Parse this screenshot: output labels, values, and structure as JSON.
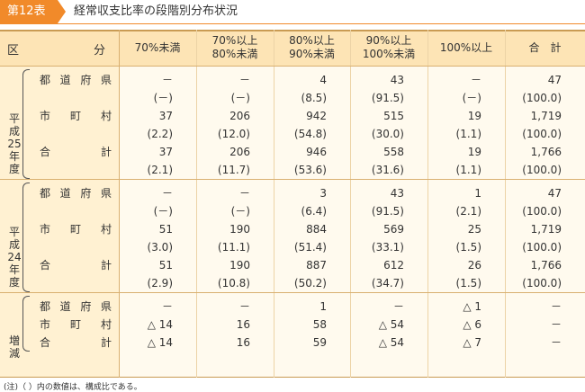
{
  "title": {
    "badge": "第12表",
    "text": "経常収支比率の段階別分布状況"
  },
  "header": {
    "kubun_left": "区",
    "kubun_right": "分",
    "cols": [
      [
        "70%未満"
      ],
      [
        "70%以上",
        "80%未満"
      ],
      [
        "80%以上",
        "90%未満"
      ],
      [
        "90%以上",
        "100%未満"
      ],
      [
        "100%以上"
      ],
      [
        "合　計"
      ]
    ]
  },
  "rows": {
    "prefecture": [
      "都",
      "道",
      "府",
      "県"
    ],
    "municipal": [
      "市",
      "町",
      "村"
    ],
    "total": [
      "合",
      "計"
    ]
  },
  "groups": [
    {
      "label": "平成25年度",
      "rows": [
        {
          "type": "prefecture",
          "values": [
            "－",
            "－",
            "4",
            "43",
            "－",
            "47"
          ]
        },
        {
          "type": "ratio",
          "values": [
            "(－)",
            "(－)",
            "(8.5)",
            "(91.5)",
            "(－)",
            "(100.0)"
          ]
        },
        {
          "type": "municipal",
          "values": [
            "37",
            "206",
            "942",
            "515",
            "19",
            "1,719"
          ]
        },
        {
          "type": "ratio",
          "values": [
            "(2.2)",
            "(12.0)",
            "(54.8)",
            "(30.0)",
            "(1.1)",
            "(100.0)"
          ]
        },
        {
          "type": "total",
          "values": [
            "37",
            "206",
            "946",
            "558",
            "19",
            "1,766"
          ]
        },
        {
          "type": "ratio",
          "values": [
            "(2.1)",
            "(11.7)",
            "(53.6)",
            "(31.6)",
            "(1.1)",
            "(100.0)"
          ]
        }
      ]
    },
    {
      "label": "平成24年度",
      "rows": [
        {
          "type": "prefecture",
          "values": [
            "－",
            "－",
            "3",
            "43",
            "1",
            "47"
          ]
        },
        {
          "type": "ratio",
          "values": [
            "(－)",
            "(－)",
            "(6.4)",
            "(91.5)",
            "(2.1)",
            "(100.0)"
          ]
        },
        {
          "type": "municipal",
          "values": [
            "51",
            "190",
            "884",
            "569",
            "25",
            "1,719"
          ]
        },
        {
          "type": "ratio",
          "values": [
            "(3.0)",
            "(11.1)",
            "(51.4)",
            "(33.1)",
            "(1.5)",
            "(100.0)"
          ]
        },
        {
          "type": "total",
          "values": [
            "51",
            "190",
            "887",
            "612",
            "26",
            "1,766"
          ]
        },
        {
          "type": "ratio",
          "values": [
            "(2.9)",
            "(10.8)",
            "(50.2)",
            "(34.7)",
            "(1.5)",
            "(100.0)"
          ]
        }
      ]
    },
    {
      "label": "増減",
      "rows": [
        {
          "type": "prefecture",
          "values": [
            "－",
            "－",
            "1",
            "－",
            "△ 1",
            "－"
          ]
        },
        {
          "type": "municipal",
          "values": [
            "△ 14",
            "16",
            "58",
            "△ 54",
            "△ 6",
            "－"
          ]
        },
        {
          "type": "total",
          "values": [
            "△ 14",
            "16",
            "59",
            "△ 54",
            "△ 7",
            "－"
          ]
        }
      ]
    }
  ],
  "note": "(注)（ ）内の数値は、構成比である。"
}
